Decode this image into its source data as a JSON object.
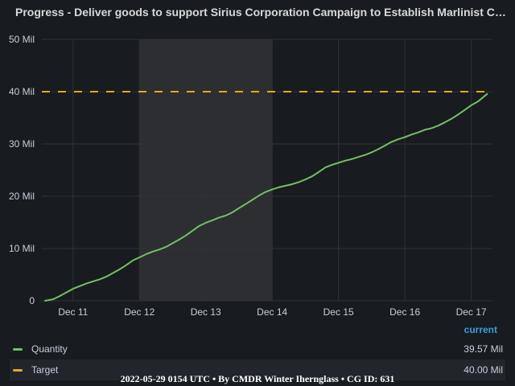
{
  "title": "Progress - Deliver goods to support Sirius Corporation Campaign to Establish Marlinist Colonies",
  "footer": "2022-05-29 0154 UTC • By CMDR Winter Iherngla​ss • CG ID: 631",
  "legend": {
    "header": "current",
    "items": [
      {
        "name": "Quantity",
        "value": "39.57 Mil",
        "color": "#73bf69"
      },
      {
        "name": "Target",
        "value": "40.00 Mil",
        "color": "#e5a728"
      }
    ]
  },
  "chart_data": {
    "type": "line",
    "x_tick_labels": [
      "Dec 11",
      "Dec 12",
      "Dec 13",
      "Dec 14",
      "Dec 15",
      "Dec 16",
      "Dec 17"
    ],
    "y_tick_labels": [
      "0",
      "10 Mil",
      "20 Mil",
      "30 Mil",
      "40 Mil",
      "50 Mil"
    ],
    "ylim": [
      0,
      50
    ],
    "xlim": [
      10.53,
      17.32
    ],
    "y_unit": "Mil",
    "grid": true,
    "highlight_band": [
      11.997,
      13.997
    ],
    "series": [
      {
        "name": "Quantity",
        "color": "#73bf69",
        "x": [
          10.58,
          10.7,
          10.8,
          10.9,
          11.0,
          11.1,
          11.2,
          11.3,
          11.4,
          11.5,
          11.6,
          11.7,
          11.8,
          11.9,
          12.0,
          12.1,
          12.2,
          12.3,
          12.4,
          12.5,
          12.6,
          12.7,
          12.8,
          12.9,
          13.0,
          13.1,
          13.2,
          13.3,
          13.4,
          13.5,
          13.6,
          13.7,
          13.8,
          13.9,
          14.0,
          14.1,
          14.2,
          14.3,
          14.4,
          14.5,
          14.6,
          14.7,
          14.8,
          14.9,
          15.0,
          15.1,
          15.2,
          15.3,
          15.4,
          15.5,
          15.6,
          15.7,
          15.8,
          15.9,
          16.0,
          16.1,
          16.2,
          16.3,
          16.4,
          16.5,
          16.6,
          16.7,
          16.8,
          16.9,
          17.0,
          17.1,
          17.24
        ],
        "values": [
          0.0,
          0.3,
          0.9,
          1.6,
          2.3,
          2.8,
          3.3,
          3.7,
          4.1,
          4.6,
          5.3,
          6.0,
          6.8,
          7.7,
          8.3,
          8.9,
          9.4,
          9.8,
          10.3,
          11.0,
          11.7,
          12.5,
          13.4,
          14.3,
          14.9,
          15.4,
          15.9,
          16.3,
          16.9,
          17.7,
          18.5,
          19.3,
          20.1,
          20.8,
          21.3,
          21.7,
          22.0,
          22.3,
          22.7,
          23.2,
          23.8,
          24.6,
          25.5,
          26.0,
          26.4,
          26.8,
          27.1,
          27.5,
          27.9,
          28.4,
          29.0,
          29.7,
          30.4,
          30.9,
          31.3,
          31.8,
          32.2,
          32.7,
          33.0,
          33.5,
          34.1,
          34.8,
          35.6,
          36.5,
          37.4,
          38.1,
          39.57
        ]
      },
      {
        "name": "Target",
        "color": "#e5a728",
        "dashed": true,
        "x": [
          10.53,
          17.32
        ],
        "values": [
          40,
          40
        ]
      }
    ]
  }
}
